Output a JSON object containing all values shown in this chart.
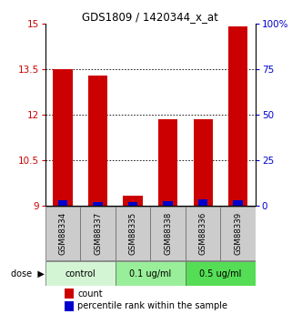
{
  "title": "GDS1809 / 1420344_x_at",
  "samples": [
    "GSM88334",
    "GSM88337",
    "GSM88335",
    "GSM88338",
    "GSM88336",
    "GSM88339"
  ],
  "red_values": [
    13.5,
    13.3,
    9.35,
    11.85,
    11.85,
    14.9
  ],
  "blue_heights": [
    0.18,
    0.14,
    0.12,
    0.16,
    0.22,
    0.18
  ],
  "y_min": 9,
  "y_max": 15,
  "y_ticks": [
    9,
    10.5,
    12,
    13.5,
    15
  ],
  "y_right_ticks": [
    0,
    25,
    50,
    75,
    100
  ],
  "y_right_labels": [
    "0",
    "25",
    "50",
    "75",
    "100%"
  ],
  "left_color": "#cc0000",
  "right_color": "#0000cc",
  "dotted_lines": [
    10.5,
    12,
    13.5
  ],
  "dose_groups": [
    {
      "label": "control",
      "start": 0,
      "end": 2,
      "color": "#d4f5d4"
    },
    {
      "label": "0.1 ug/ml",
      "start": 2,
      "end": 4,
      "color": "#99ee99"
    },
    {
      "label": "0.5 ug/ml",
      "start": 4,
      "end": 6,
      "color": "#55dd55"
    }
  ],
  "legend_count": "count",
  "legend_pct": "percentile rank within the sample",
  "bar_width": 0.55,
  "blue_bar_width": 0.28,
  "sample_box_color": "#cccccc",
  "red_bar_color": "#cc0000",
  "blue_bar_color": "#0000cc"
}
